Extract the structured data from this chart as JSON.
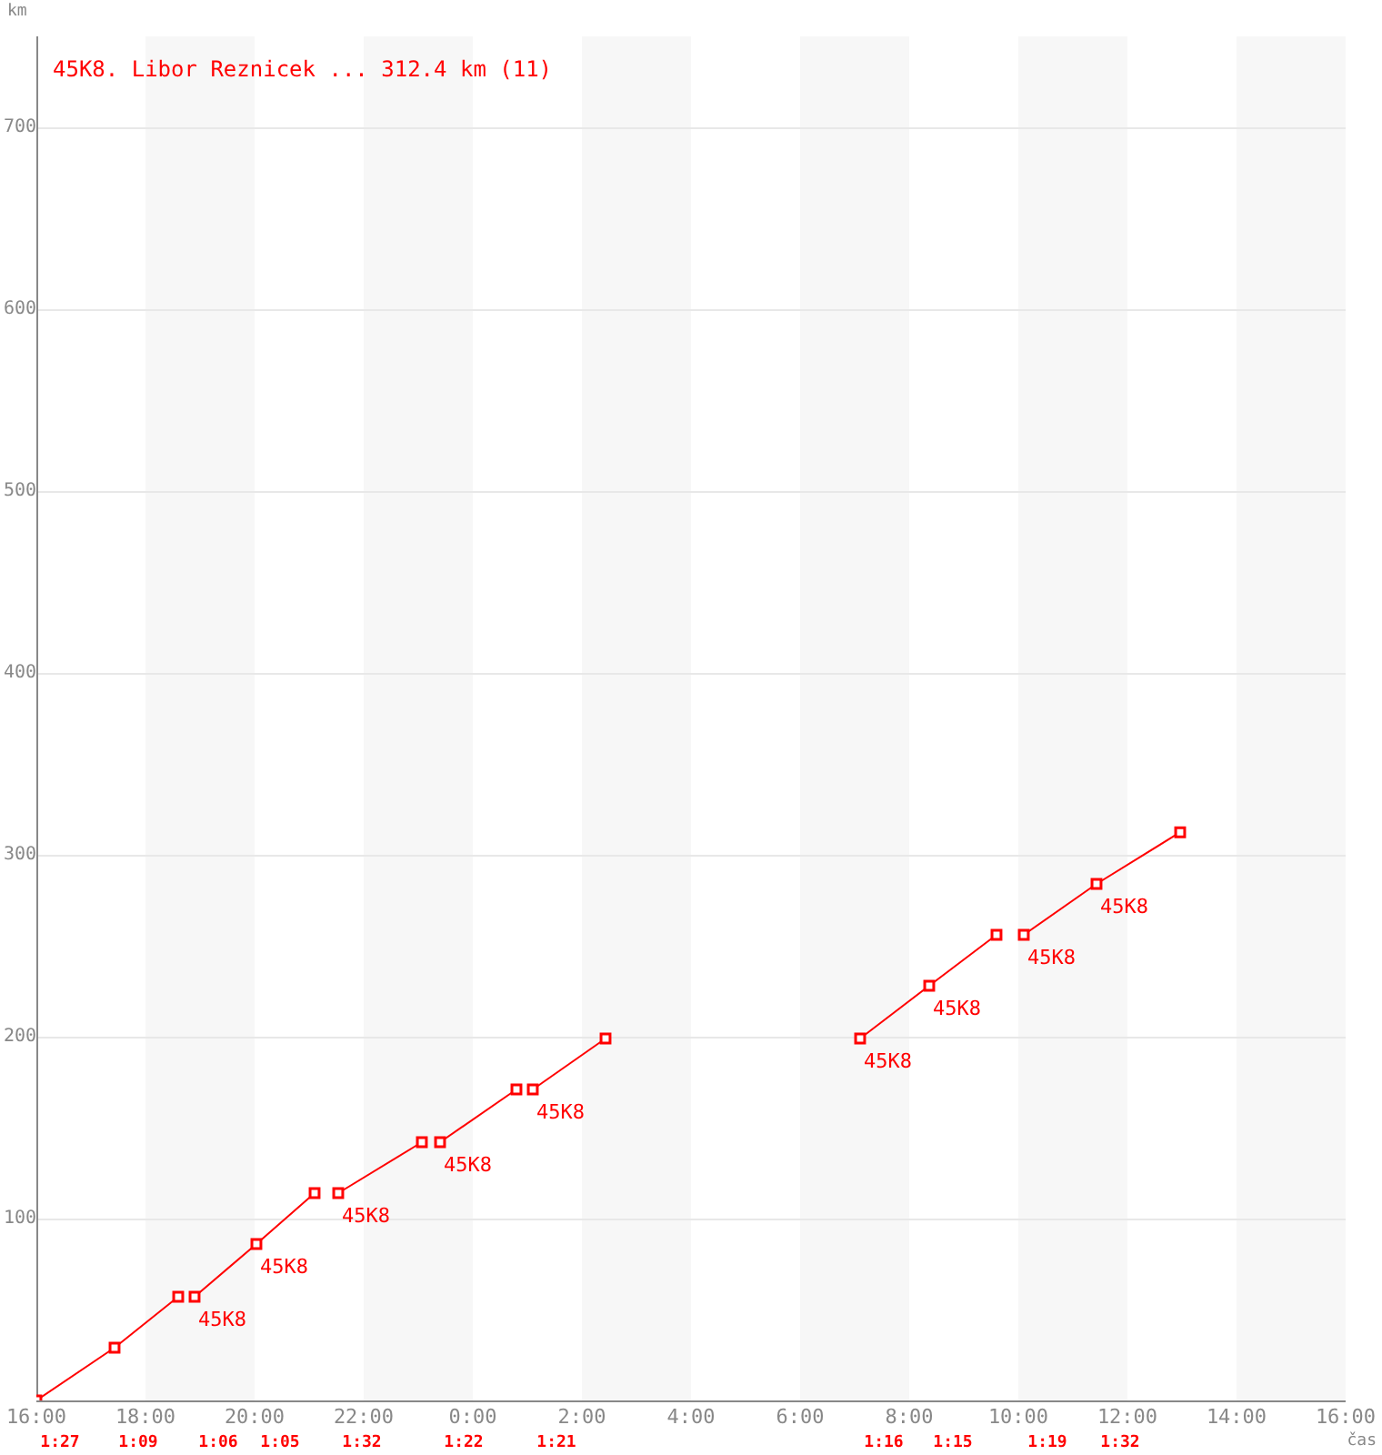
{
  "chart_data": {
    "type": "line",
    "title": "45K8. Libor Reznicek ... 312.4 km (11)",
    "xlabel": "čas",
    "ylabel": "km",
    "xlim": [
      "2000-01-01T16:00",
      "2000-01-02T16:00"
    ],
    "xticks": [
      {
        "value": "2000-01-01T16:00",
        "label": "16:00"
      },
      {
        "value": "2000-01-01T18:00",
        "label": "18:00"
      },
      {
        "value": "2000-01-01T20:00",
        "label": "20:00"
      },
      {
        "value": "2000-01-01T22:00",
        "label": "22:00"
      },
      {
        "value": "2000-01-02T00:00",
        "label": "0:00"
      },
      {
        "value": "2000-01-02T02:00",
        "label": "2:00"
      },
      {
        "value": "2000-01-02T04:00",
        "label": "4:00"
      },
      {
        "value": "2000-01-02T06:00",
        "label": "6:00"
      },
      {
        "value": "2000-01-02T08:00",
        "label": "8:00"
      },
      {
        "value": "2000-01-02T10:00",
        "label": "10:00"
      },
      {
        "value": "2000-01-02T12:00",
        "label": "12:00"
      },
      {
        "value": "2000-01-02T14:00",
        "label": "14:00"
      },
      {
        "value": "2000-01-02T16:00",
        "label": "16:00"
      }
    ],
    "ylim": [
      0,
      750
    ],
    "yticks": [
      100,
      200,
      300,
      400,
      500,
      600,
      700
    ],
    "grid": "y",
    "marker": "square",
    "bands": [
      {
        "axis": "x",
        "from": "2000-01-01T18:00",
        "to": "2000-01-01T20:00",
        "color": "#f7f7f7"
      },
      {
        "axis": "x",
        "from": "2000-01-01T22:00",
        "to": "2000-01-02T00:00",
        "color": "#f7f7f7"
      },
      {
        "axis": "x",
        "from": "2000-01-02T02:00",
        "to": "2000-01-02T04:00",
        "color": "#f7f7f7"
      },
      {
        "axis": "x",
        "from": "2000-01-02T06:00",
        "to": "2000-01-02T08:00",
        "color": "#f7f7f7"
      },
      {
        "axis": "x",
        "from": "2000-01-02T10:00",
        "to": "2000-01-02T12:00",
        "color": "#f7f7f7"
      },
      {
        "axis": "x",
        "from": "2000-01-02T14:00",
        "to": "2000-01-02T16:00",
        "color": "#f7f7f7"
      }
    ],
    "series": [
      {
        "color": "#ff0000",
        "x": [
          "2000-01-01T16:00",
          "2000-01-01T17:26",
          "2000-01-01T18:36"
        ],
        "values": [
          0,
          29,
          57
        ]
      },
      {
        "color": "#ff0000",
        "x": [
          "2000-01-01T18:54",
          "2000-01-01T20:02",
          "2000-01-01T21:06"
        ],
        "values": [
          57,
          86,
          114
        ]
      },
      {
        "color": "#ff0000",
        "x": [
          "2000-01-01T21:32",
          "2000-01-01T23:04"
        ],
        "values": [
          114,
          142
        ]
      },
      {
        "color": "#ff0000",
        "x": [
          "2000-01-01T23:24",
          "2000-01-02T00:48"
        ],
        "values": [
          142,
          171
        ]
      },
      {
        "color": "#ff0000",
        "x": [
          "2000-01-02T01:06",
          "2000-01-02T02:26"
        ],
        "values": [
          171,
          199
        ]
      },
      {
        "color": "#ff0000",
        "x": [
          "2000-01-02T07:06",
          "2000-01-02T08:22",
          "2000-01-02T09:36"
        ],
        "values": [
          199,
          228,
          256
        ]
      },
      {
        "color": "#ff0000",
        "x": [
          "2000-01-02T10:06",
          "2000-01-02T11:26",
          "2000-01-02T12:58"
        ],
        "values": [
          256,
          284,
          312.4
        ]
      }
    ],
    "annotations": [
      {
        "text": "45K8",
        "x": "2000-01-01T18:54",
        "y": 57
      },
      {
        "text": "45K8",
        "x": "2000-01-01T20:02",
        "y": 86
      },
      {
        "text": "45K8",
        "x": "2000-01-01T21:32",
        "y": 114
      },
      {
        "text": "45K8",
        "x": "2000-01-01T23:24",
        "y": 142
      },
      {
        "text": "45K8",
        "x": "2000-01-02T01:06",
        "y": 171
      },
      {
        "text": "45K8",
        "x": "2000-01-02T07:06",
        "y": 199
      },
      {
        "text": "45K8",
        "x": "2000-01-02T08:22",
        "y": 228
      },
      {
        "text": "45K8",
        "x": "2000-01-02T10:06",
        "y": 256
      },
      {
        "text": "45K8",
        "x": "2000-01-02T11:26",
        "y": 284
      },
      "1:27",
      "1:09",
      "1:06",
      "1:05",
      "1:32",
      "1:22",
      "1:21",
      "1:16",
      "1:15",
      "1:19",
      "1:32"
    ]
  }
}
